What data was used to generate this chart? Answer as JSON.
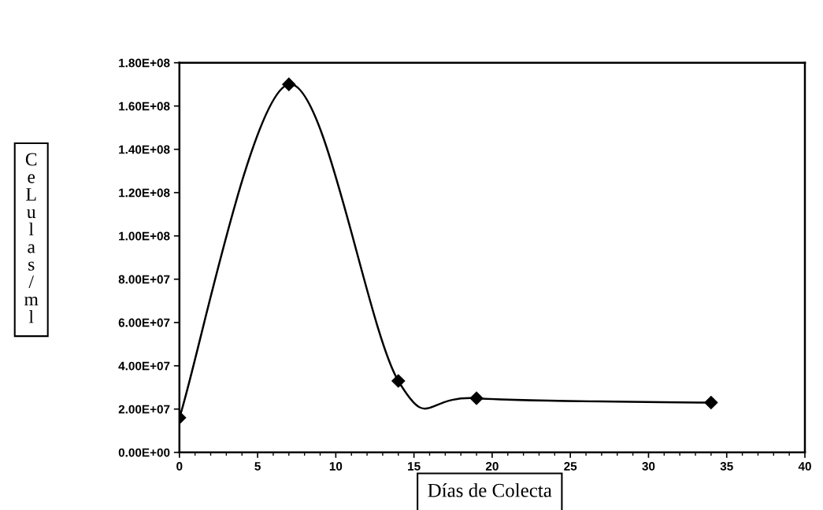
{
  "chart_data": {
    "type": "line",
    "xlabel": "Días de Colecta",
    "ylabel": "CeLulas/ml",
    "x": [
      0,
      7,
      14,
      19,
      34
    ],
    "series": [
      {
        "color": "#000000",
        "values": [
          16000000.0,
          170000000.0,
          33000000.0,
          25000000.0,
          23000000.0
        ]
      }
    ],
    "xlim": [
      0,
      40
    ],
    "xticks": [
      0,
      5,
      10,
      15,
      20,
      25,
      30,
      35,
      40
    ],
    "ylim": [
      0,
      180000000.0
    ],
    "yticks": [
      {
        "value": 0,
        "label": "0.00E+00"
      },
      {
        "value": 20000000.0,
        "label": "2.00E+07"
      },
      {
        "value": 40000000.0,
        "label": "4.00E+07"
      },
      {
        "value": 60000000.0,
        "label": "6.00E+07"
      },
      {
        "value": 80000000.0,
        "label": "8.00E+07"
      },
      {
        "value": 100000000.0,
        "label": "1.00E+08"
      },
      {
        "value": 120000000.0,
        "label": "1.20E+08"
      },
      {
        "value": 140000000.0,
        "label": "1.40E+08"
      },
      {
        "value": 160000000.0,
        "label": "1.60E+08"
      },
      {
        "value": 180000000.0,
        "label": "1.80E+08"
      }
    ],
    "grid": false,
    "legend": false,
    "marker": "diamond",
    "line_style": "solid"
  }
}
